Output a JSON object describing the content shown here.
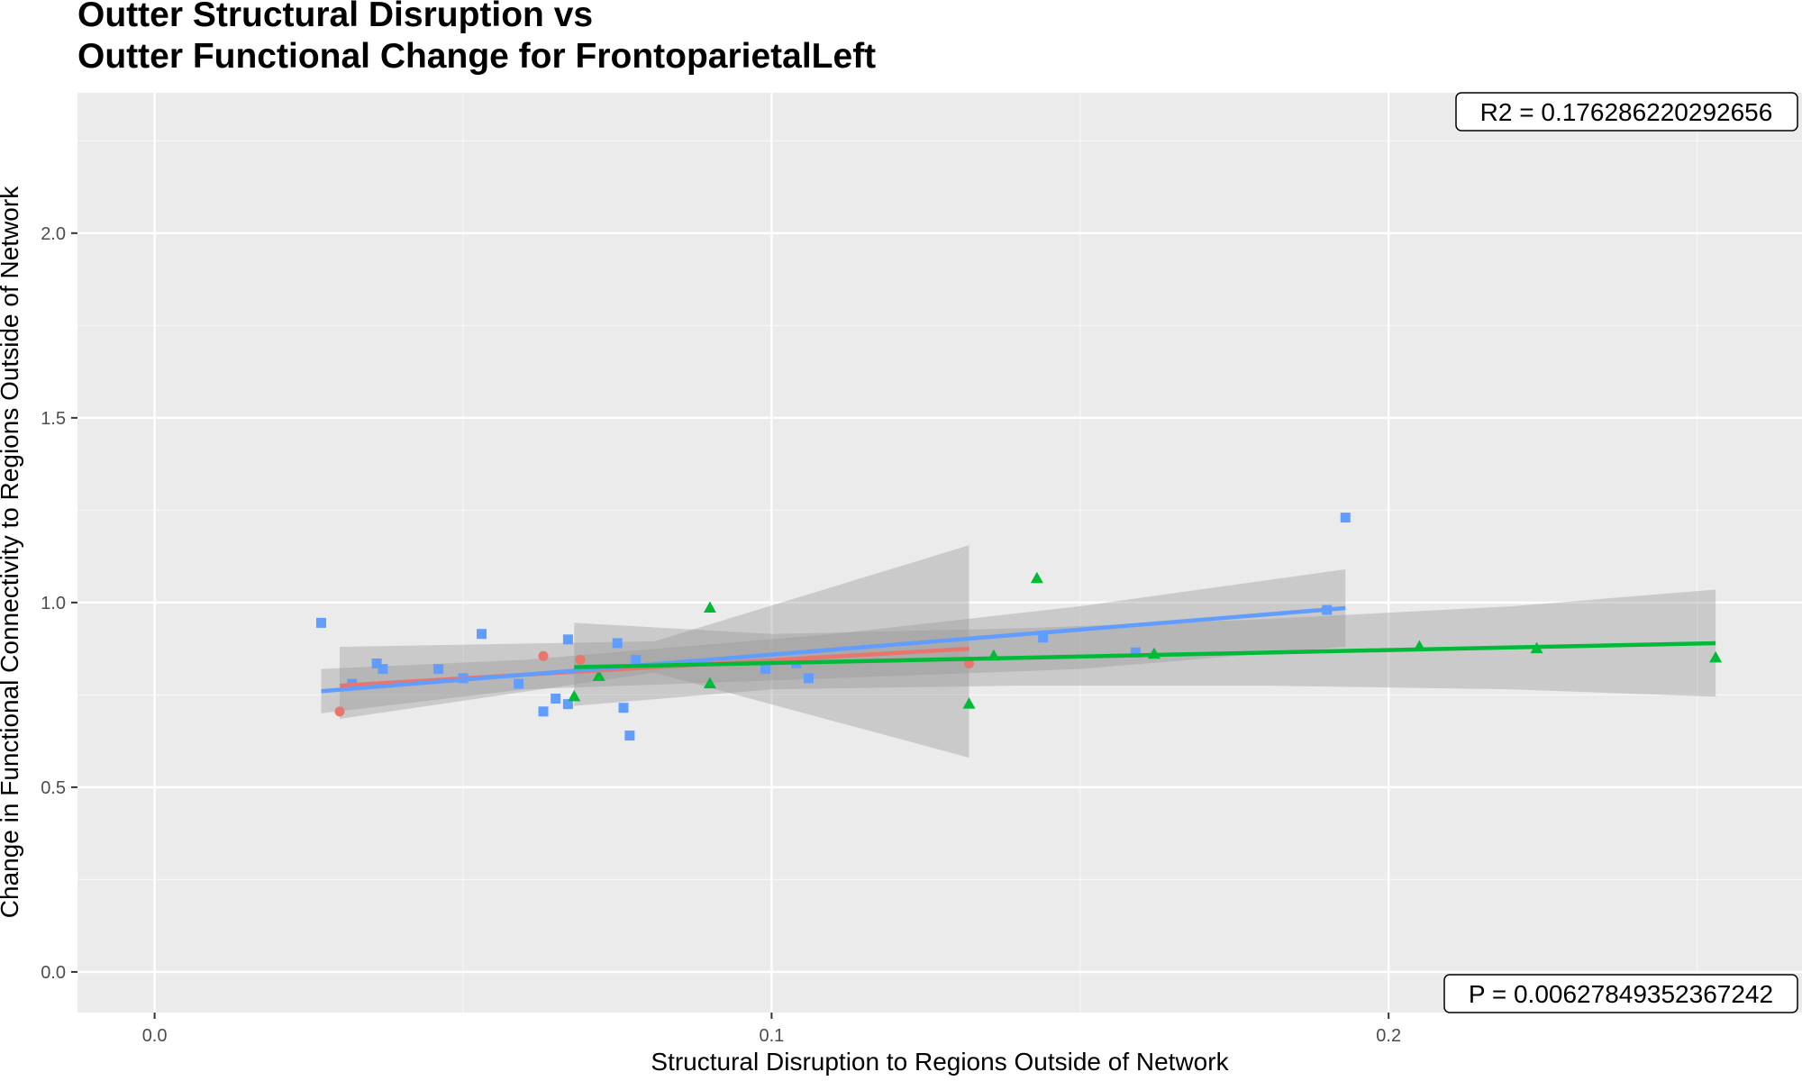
{
  "chart_data": {
    "type": "scatter",
    "title_lines": [
      "Outter Structural Disruption vs",
      "Outter Functional Change for FrontoparietalLeft"
    ],
    "xlabel": "Structural Disruption to Regions Outside of Network",
    "ylabel": "Change in Functional Connectivity to Regions Outside of Network",
    "xlim": [
      -0.0125,
      0.267
    ],
    "ylim": [
      -0.11,
      2.38
    ],
    "x_ticks": [
      {
        "value": 0.0,
        "label": "0.0"
      },
      {
        "value": 0.1,
        "label": "0.1"
      },
      {
        "value": 0.2,
        "label": "0.2"
      }
    ],
    "y_ticks": [
      {
        "value": 0.0,
        "label": "0.0"
      },
      {
        "value": 0.5,
        "label": "0.5"
      },
      {
        "value": 1.0,
        "label": "1.0"
      },
      {
        "value": 1.5,
        "label": "1.5"
      },
      {
        "value": 2.0,
        "label": "2.0"
      }
    ],
    "minor_x": [
      0.05,
      0.15,
      0.25
    ],
    "minor_y": [
      0.25,
      0.75,
      1.25,
      1.75,
      2.25
    ],
    "grid": true,
    "legend": "none",
    "annotations": {
      "r2": "R2 =  0.176286220292656",
      "p": "P =  0.00627849352367242"
    },
    "series": [
      {
        "marker": "circle",
        "color": "#E8766D",
        "points": [
          [
            0.03,
            0.705
          ],
          [
            0.063,
            0.855
          ],
          [
            0.069,
            0.845
          ],
          [
            0.132,
            0.835
          ]
        ],
        "fit": {
          "x": [
            0.03,
            0.132
          ],
          "y": [
            0.775,
            0.875
          ]
        },
        "band": {
          "x": [
            0.03,
            0.081,
            0.132
          ],
          "upper": [
            0.88,
            0.895,
            1.155
          ],
          "lower": [
            0.685,
            0.81,
            0.58
          ]
        }
      },
      {
        "marker": "square",
        "color": "#619CFF",
        "points": [
          [
            0.027,
            0.945
          ],
          [
            0.032,
            0.78
          ],
          [
            0.036,
            0.835
          ],
          [
            0.037,
            0.82
          ],
          [
            0.046,
            0.82
          ],
          [
            0.05,
            0.795
          ],
          [
            0.053,
            0.915
          ],
          [
            0.059,
            0.78
          ],
          [
            0.063,
            0.705
          ],
          [
            0.065,
            0.74
          ],
          [
            0.067,
            0.725
          ],
          [
            0.067,
            0.9
          ],
          [
            0.075,
            0.89
          ],
          [
            0.076,
            0.715
          ],
          [
            0.077,
            0.64
          ],
          [
            0.078,
            0.845
          ],
          [
            0.099,
            0.82
          ],
          [
            0.104,
            0.835
          ],
          [
            0.106,
            0.795
          ],
          [
            0.144,
            0.905
          ],
          [
            0.159,
            0.865
          ],
          [
            0.19,
            0.98
          ],
          [
            0.193,
            1.23
          ]
        ],
        "fit": {
          "x": [
            0.027,
            0.193
          ],
          "y": [
            0.76,
            0.985
          ]
        },
        "band": {
          "x": [
            0.027,
            0.06,
            0.11,
            0.15,
            0.193
          ],
          "upper": [
            0.82,
            0.845,
            0.915,
            0.99,
            1.09
          ],
          "lower": [
            0.7,
            0.765,
            0.795,
            0.82,
            0.88
          ]
        }
      },
      {
        "marker": "triangle",
        "color": "#00BA38",
        "points": [
          [
            0.068,
            0.745
          ],
          [
            0.072,
            0.8
          ],
          [
            0.09,
            0.985
          ],
          [
            0.09,
            0.78
          ],
          [
            0.132,
            0.725
          ],
          [
            0.136,
            0.855
          ],
          [
            0.143,
            1.065
          ],
          [
            0.162,
            0.86
          ],
          [
            0.205,
            0.88
          ],
          [
            0.224,
            0.875
          ],
          [
            0.253,
            0.85
          ]
        ],
        "fit": {
          "x": [
            0.068,
            0.253
          ],
          "y": [
            0.825,
            0.89
          ]
        },
        "band": {
          "x": [
            0.068,
            0.1,
            0.14,
            0.18,
            0.22,
            0.253
          ],
          "upper": [
            0.945,
            0.915,
            0.93,
            0.955,
            0.99,
            1.035
          ],
          "lower": [
            0.72,
            0.765,
            0.775,
            0.775,
            0.765,
            0.745
          ]
        }
      }
    ]
  }
}
